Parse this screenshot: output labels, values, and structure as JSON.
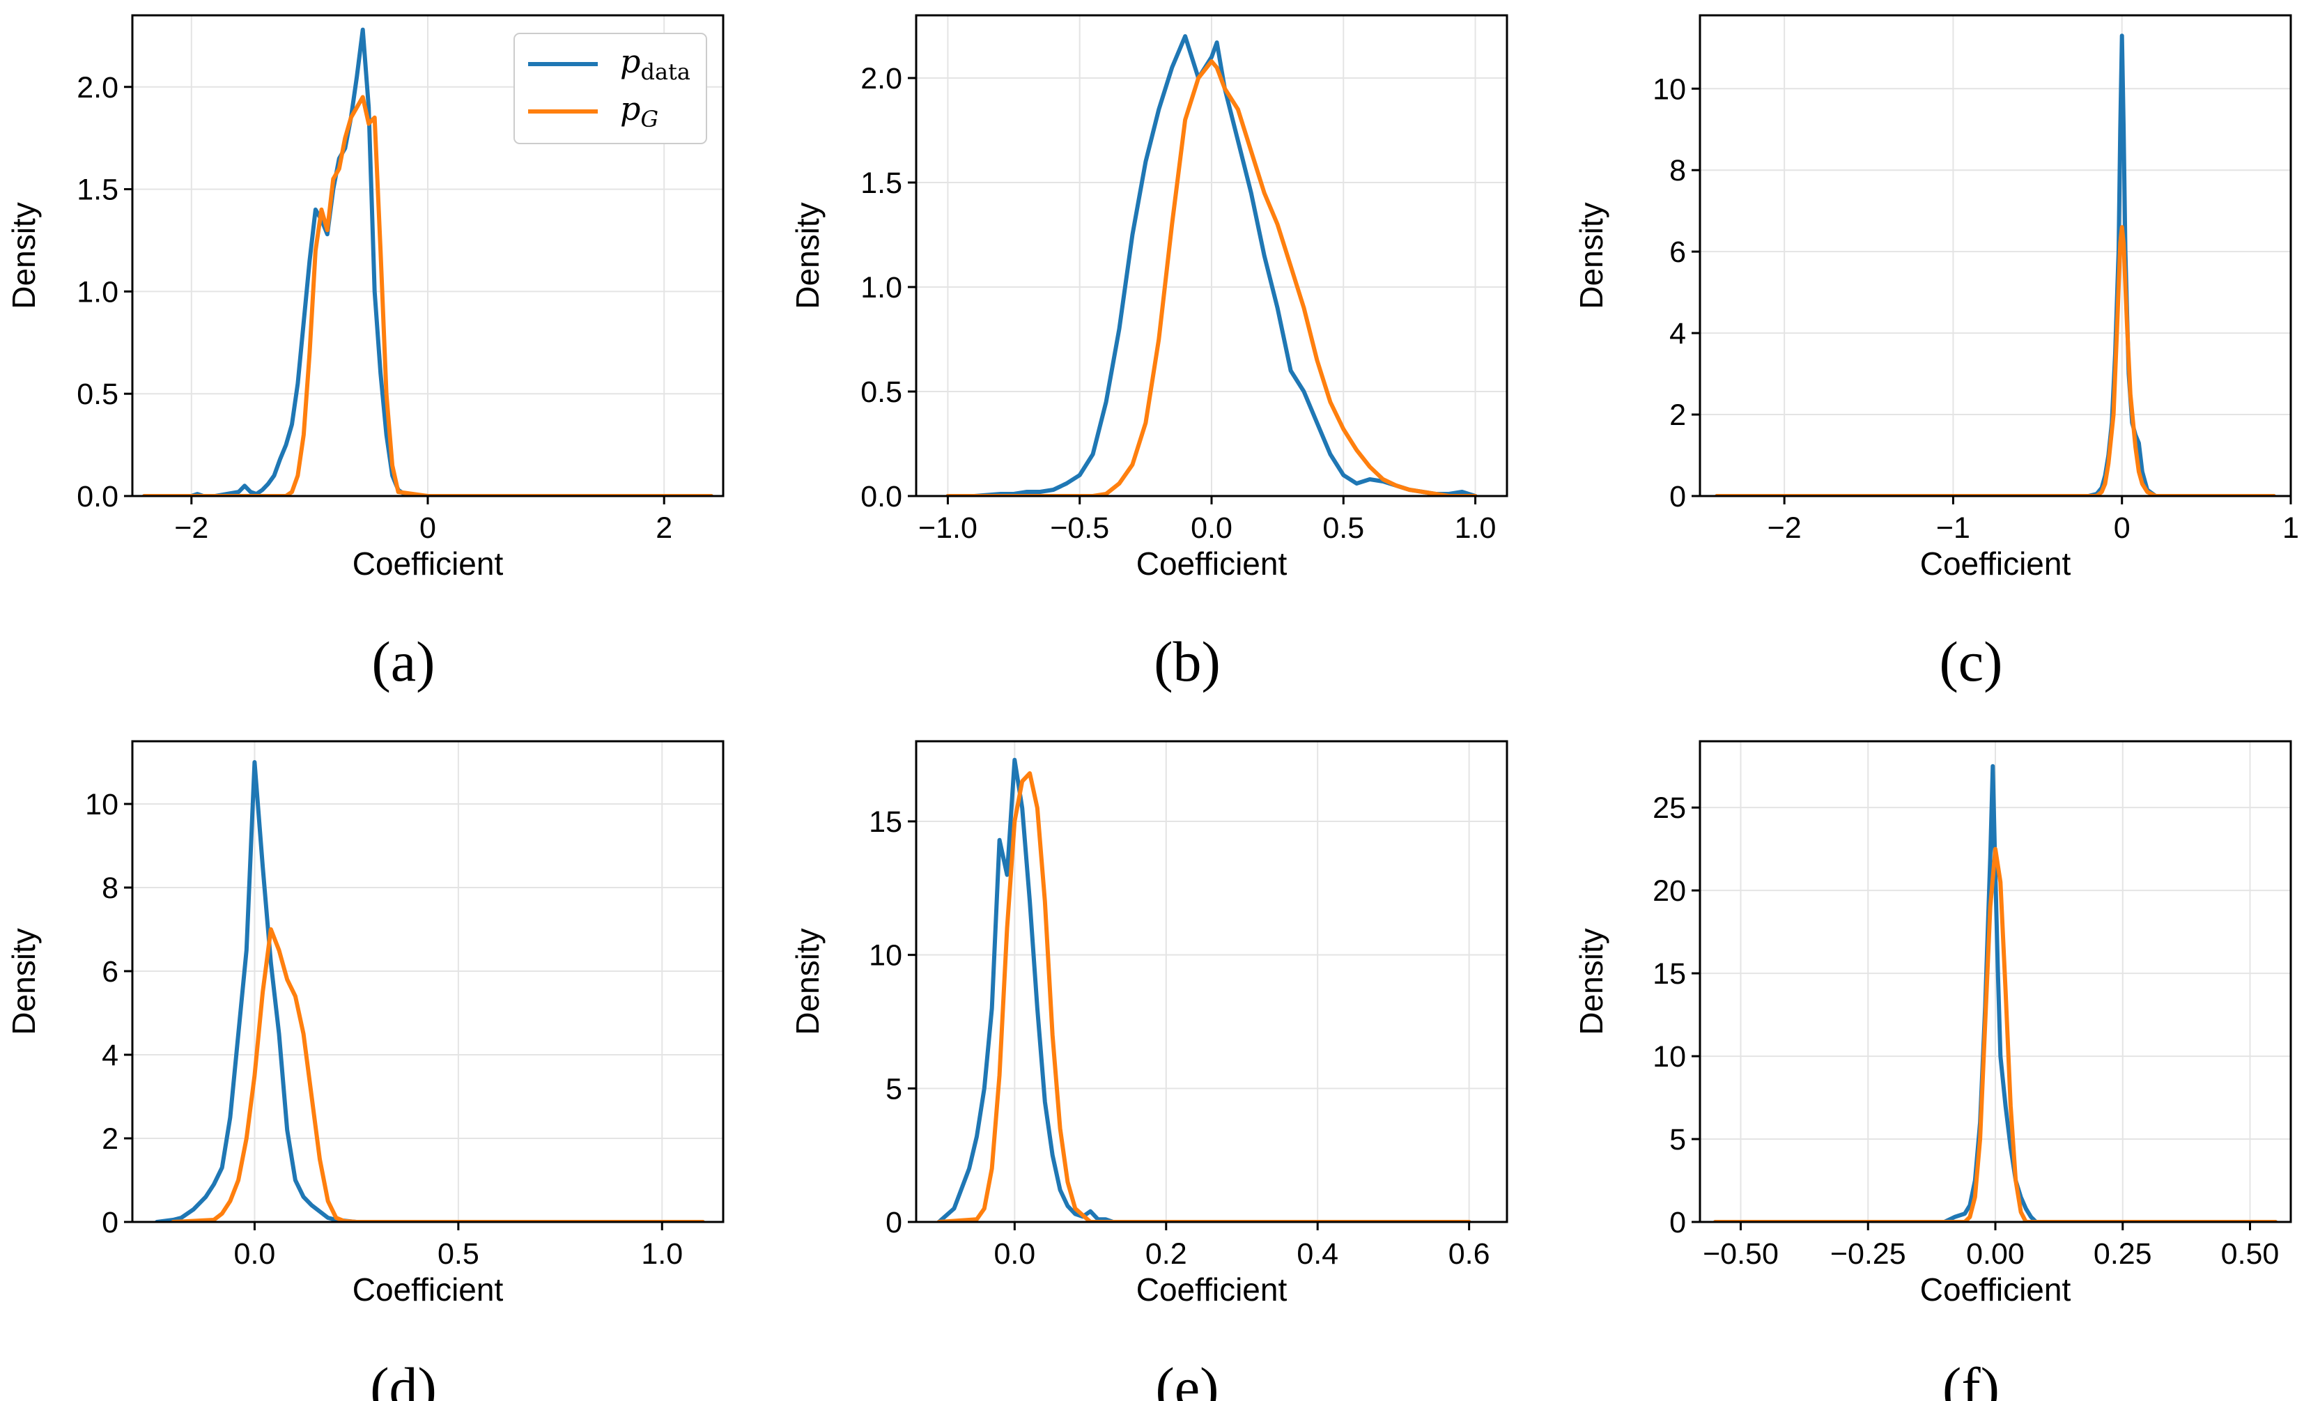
{
  "colors": {
    "p_data": "#1f77b4",
    "p_G": "#ff7f0e"
  },
  "legend": {
    "p_data": "p",
    "p_data_sub": "data",
    "p_G": "p",
    "p_G_sub": "G",
    "placement": "top-right",
    "panel": "a"
  },
  "chart_data": [
    {
      "type": "line",
      "caption": "(a)",
      "xlabel": "Coefficient",
      "ylabel": "Density",
      "xlim": [
        -2.5,
        2.5
      ],
      "ylim": [
        0,
        2.35
      ],
      "xticks": [
        -2,
        0,
        2
      ],
      "xtick_labels": [
        "−2",
        "0",
        "2"
      ],
      "yticks": [
        0,
        0.5,
        1,
        1.5,
        2
      ],
      "ytick_labels": [
        "0.0",
        "0.5",
        "1.0",
        "1.5",
        "2.0"
      ],
      "series": [
        {
          "name": "p_data",
          "x": [
            -2.4,
            -2.0,
            -1.95,
            -1.9,
            -1.8,
            -1.6,
            -1.55,
            -1.5,
            -1.45,
            -1.4,
            -1.35,
            -1.3,
            -1.25,
            -1.2,
            -1.15,
            -1.1,
            -1.05,
            -1.0,
            -0.95,
            -0.9,
            -0.85,
            -0.8,
            -0.75,
            -0.7,
            -0.65,
            -0.6,
            -0.55,
            -0.5,
            -0.45,
            -0.4,
            -0.35,
            -0.3,
            -0.25,
            -0.2,
            0,
            0.5,
            1,
            2,
            2.4
          ],
          "y": [
            0,
            0,
            0.01,
            0,
            0,
            0.02,
            0.05,
            0.02,
            0.01,
            0.03,
            0.06,
            0.1,
            0.18,
            0.25,
            0.35,
            0.55,
            0.85,
            1.15,
            1.4,
            1.35,
            1.28,
            1.5,
            1.65,
            1.7,
            1.85,
            2.05,
            2.28,
            1.9,
            1.0,
            0.6,
            0.3,
            0.1,
            0.03,
            0.01,
            0,
            0,
            0,
            0,
            0
          ]
        },
        {
          "name": "p_G",
          "x": [
            -2.4,
            -1.2,
            -1.15,
            -1.1,
            -1.05,
            -1.0,
            -0.95,
            -0.9,
            -0.85,
            -0.8,
            -0.75,
            -0.7,
            -0.65,
            -0.6,
            -0.55,
            -0.5,
            -0.45,
            -0.4,
            -0.35,
            -0.3,
            -0.25,
            0,
            2.4
          ],
          "y": [
            0,
            0,
            0.02,
            0.1,
            0.3,
            0.7,
            1.2,
            1.4,
            1.3,
            1.55,
            1.6,
            1.75,
            1.85,
            1.9,
            1.95,
            1.82,
            1.85,
            1.2,
            0.5,
            0.15,
            0.02,
            0,
            0
          ]
        }
      ]
    },
    {
      "type": "line",
      "caption": "(b)",
      "xlabel": "Coefficient",
      "ylabel": "Density",
      "xlim": [
        -1.12,
        1.12
      ],
      "ylim": [
        0,
        2.3
      ],
      "xticks": [
        -1,
        -0.5,
        0,
        0.5,
        1
      ],
      "xtick_labels": [
        "−1.0",
        "−0.5",
        "0.0",
        "0.5",
        "1.0"
      ],
      "yticks": [
        0,
        0.5,
        1,
        1.5,
        2
      ],
      "ytick_labels": [
        "0.0",
        "0.5",
        "1.0",
        "1.5",
        "2.0"
      ],
      "series": [
        {
          "name": "p_data",
          "x": [
            -1.0,
            -0.9,
            -0.8,
            -0.75,
            -0.7,
            -0.65,
            -0.6,
            -0.55,
            -0.5,
            -0.45,
            -0.4,
            -0.35,
            -0.3,
            -0.25,
            -0.2,
            -0.15,
            -0.1,
            -0.05,
            0,
            0.02,
            0.05,
            0.1,
            0.15,
            0.2,
            0.25,
            0.3,
            0.35,
            0.4,
            0.45,
            0.5,
            0.55,
            0.6,
            0.65,
            0.7,
            0.75,
            0.8,
            0.85,
            0.9,
            0.95,
            1.0
          ],
          "y": [
            0,
            0,
            0.01,
            0.01,
            0.02,
            0.02,
            0.03,
            0.06,
            0.1,
            0.2,
            0.45,
            0.8,
            1.25,
            1.6,
            1.85,
            2.05,
            2.2,
            2.0,
            2.1,
            2.17,
            1.95,
            1.7,
            1.45,
            1.15,
            0.9,
            0.6,
            0.5,
            0.35,
            0.2,
            0.1,
            0.06,
            0.08,
            0.07,
            0.05,
            0.03,
            0.02,
            0.01,
            0.01,
            0.02,
            0
          ]
        },
        {
          "name": "p_G",
          "x": [
            -1.0,
            -0.45,
            -0.4,
            -0.35,
            -0.3,
            -0.25,
            -0.2,
            -0.15,
            -0.1,
            -0.05,
            0,
            0.02,
            0.05,
            0.1,
            0.15,
            0.2,
            0.25,
            0.3,
            0.35,
            0.4,
            0.45,
            0.5,
            0.55,
            0.6,
            0.65,
            0.7,
            0.75,
            0.8,
            0.85,
            0.9,
            1.0
          ],
          "y": [
            0,
            0,
            0.01,
            0.06,
            0.15,
            0.35,
            0.75,
            1.3,
            1.8,
            2.0,
            2.08,
            2.05,
            1.95,
            1.85,
            1.65,
            1.45,
            1.3,
            1.1,
            0.9,
            0.65,
            0.45,
            0.32,
            0.22,
            0.14,
            0.08,
            0.05,
            0.03,
            0.02,
            0.01,
            0,
            0
          ]
        }
      ]
    },
    {
      "type": "line",
      "caption": "(c)",
      "xlabel": "Coefficient",
      "ylabel": "Density",
      "xlim": [
        -2.5,
        1.0
      ],
      "ylim": [
        0,
        11.8
      ],
      "xticks": [
        -2,
        -1,
        0,
        1
      ],
      "xtick_labels": [
        "−2",
        "−1",
        "0",
        "1"
      ],
      "yticks": [
        0,
        2,
        4,
        6,
        8,
        10
      ],
      "ytick_labels": [
        "0",
        "2",
        "4",
        "6",
        "8",
        "10"
      ],
      "series": [
        {
          "name": "p_data",
          "x": [
            -2.4,
            -0.2,
            -0.15,
            -0.12,
            -0.1,
            -0.08,
            -0.06,
            -0.04,
            -0.02,
            -0.01,
            0,
            0.01,
            0.02,
            0.04,
            0.06,
            0.08,
            0.1,
            0.12,
            0.15,
            0.2,
            0.9
          ],
          "y": [
            0,
            0,
            0.05,
            0.2,
            0.5,
            1.0,
            1.8,
            3.5,
            6.0,
            9.0,
            11.3,
            9.0,
            6.0,
            3.0,
            1.8,
            1.5,
            1.3,
            0.6,
            0.15,
            0,
            0
          ]
        },
        {
          "name": "p_G",
          "x": [
            -2.4,
            -0.15,
            -0.12,
            -0.1,
            -0.08,
            -0.05,
            -0.03,
            -0.01,
            0,
            0.01,
            0.03,
            0.05,
            0.08,
            0.1,
            0.12,
            0.15,
            0.2,
            0.9
          ],
          "y": [
            0,
            0,
            0.1,
            0.3,
            0.8,
            2.0,
            4.0,
            6.2,
            6.6,
            6.2,
            4.2,
            2.5,
            1.2,
            0.6,
            0.3,
            0.1,
            0,
            0
          ]
        }
      ]
    },
    {
      "type": "line",
      "caption": "(d)",
      "xlabel": "Coefficient",
      "ylabel": "Density",
      "xlim": [
        -0.3,
        1.15
      ],
      "ylim": [
        0,
        11.5
      ],
      "xticks": [
        0,
        0.5,
        1
      ],
      "xtick_labels": [
        "0.0",
        "0.5",
        "1.0"
      ],
      "yticks": [
        0,
        2,
        4,
        6,
        8,
        10
      ],
      "ytick_labels": [
        "0",
        "2",
        "4",
        "6",
        "8",
        "10"
      ],
      "series": [
        {
          "name": "p_data",
          "x": [
            -0.24,
            -0.2,
            -0.18,
            -0.15,
            -0.12,
            -0.1,
            -0.08,
            -0.06,
            -0.04,
            -0.02,
            0,
            0.02,
            0.04,
            0.06,
            0.08,
            0.1,
            0.12,
            0.14,
            0.16,
            0.18,
            0.2,
            0.25,
            1.1
          ],
          "y": [
            0,
            0.05,
            0.1,
            0.3,
            0.6,
            0.9,
            1.3,
            2.5,
            4.5,
            6.5,
            11.0,
            8.5,
            6.2,
            4.5,
            2.2,
            1.0,
            0.6,
            0.4,
            0.25,
            0.1,
            0.05,
            0,
            0
          ]
        },
        {
          "name": "p_G",
          "x": [
            -0.2,
            -0.1,
            -0.08,
            -0.06,
            -0.04,
            -0.02,
            0,
            0.02,
            0.04,
            0.06,
            0.08,
            0.1,
            0.12,
            0.14,
            0.16,
            0.18,
            0.2,
            0.22,
            0.25,
            1.1
          ],
          "y": [
            0,
            0.05,
            0.2,
            0.5,
            1.0,
            2.0,
            3.5,
            5.5,
            7.0,
            6.5,
            5.8,
            5.4,
            4.5,
            3.0,
            1.5,
            0.5,
            0.1,
            0.02,
            0,
            0
          ]
        }
      ]
    },
    {
      "type": "line",
      "caption": "(e)",
      "xlabel": "Coefficient",
      "ylabel": "Density",
      "xlim": [
        -0.13,
        0.65
      ],
      "ylim": [
        0,
        18
      ],
      "xticks": [
        0,
        0.2,
        0.4,
        0.6
      ],
      "xtick_labels": [
        "0.0",
        "0.2",
        "0.4",
        "0.6"
      ],
      "yticks": [
        0,
        5,
        10,
        15
      ],
      "ytick_labels": [
        "0",
        "5",
        "10",
        "15"
      ],
      "series": [
        {
          "name": "p_data",
          "x": [
            -0.1,
            -0.08,
            -0.06,
            -0.05,
            -0.04,
            -0.03,
            -0.02,
            -0.01,
            0,
            0.01,
            0.02,
            0.03,
            0.04,
            0.05,
            0.06,
            0.07,
            0.08,
            0.09,
            0.1,
            0.11,
            0.12,
            0.13,
            0.6
          ],
          "y": [
            0,
            0.5,
            2.0,
            3.2,
            5.0,
            8.0,
            14.3,
            13.0,
            17.3,
            15.5,
            12.0,
            8.0,
            4.5,
            2.5,
            1.2,
            0.6,
            0.3,
            0.2,
            0.4,
            0.1,
            0.1,
            0,
            0
          ]
        },
        {
          "name": "p_G",
          "x": [
            -0.1,
            -0.05,
            -0.04,
            -0.03,
            -0.02,
            -0.01,
            0,
            0.01,
            0.02,
            0.03,
            0.04,
            0.05,
            0.06,
            0.07,
            0.08,
            0.1,
            0.6
          ],
          "y": [
            0,
            0.1,
            0.5,
            2.0,
            5.5,
            11.0,
            15.0,
            16.5,
            16.8,
            15.5,
            12.0,
            7.0,
            3.5,
            1.5,
            0.5,
            0,
            0
          ]
        }
      ]
    },
    {
      "type": "line",
      "caption": "(f)",
      "xlabel": "Coefficient",
      "ylabel": "Density",
      "xlim": [
        -0.58,
        0.58
      ],
      "ylim": [
        0,
        29
      ],
      "xticks": [
        -0.5,
        -0.25,
        0,
        0.25,
        0.5
      ],
      "xtick_labels": [
        "−0.50",
        "−0.25",
        "0.00",
        "0.25",
        "0.50"
      ],
      "yticks": [
        0,
        5,
        10,
        15,
        20,
        25
      ],
      "ytick_labels": [
        "0",
        "5",
        "10",
        "15",
        "20",
        "25"
      ],
      "series": [
        {
          "name": "p_data",
          "x": [
            -0.55,
            -0.1,
            -0.08,
            -0.06,
            -0.05,
            -0.04,
            -0.03,
            -0.02,
            -0.01,
            -0.005,
            0,
            0.005,
            0.01,
            0.02,
            0.03,
            0.04,
            0.05,
            0.06,
            0.07,
            0.08,
            0.55
          ],
          "y": [
            0,
            0,
            0.3,
            0.5,
            1.0,
            2.5,
            6.0,
            13.0,
            22.0,
            27.5,
            21.0,
            15.0,
            10.0,
            7.0,
            4.5,
            2.5,
            1.5,
            0.8,
            0.3,
            0,
            0
          ]
        },
        {
          "name": "p_G",
          "x": [
            -0.55,
            -0.06,
            -0.05,
            -0.04,
            -0.03,
            -0.02,
            -0.01,
            0,
            0.01,
            0.02,
            0.03,
            0.04,
            0.05,
            0.06,
            0.55
          ],
          "y": [
            0,
            0,
            0.3,
            1.5,
            5.0,
            12.0,
            19.0,
            22.5,
            20.5,
            14.0,
            7.0,
            2.5,
            0.6,
            0,
            0
          ]
        }
      ]
    }
  ]
}
